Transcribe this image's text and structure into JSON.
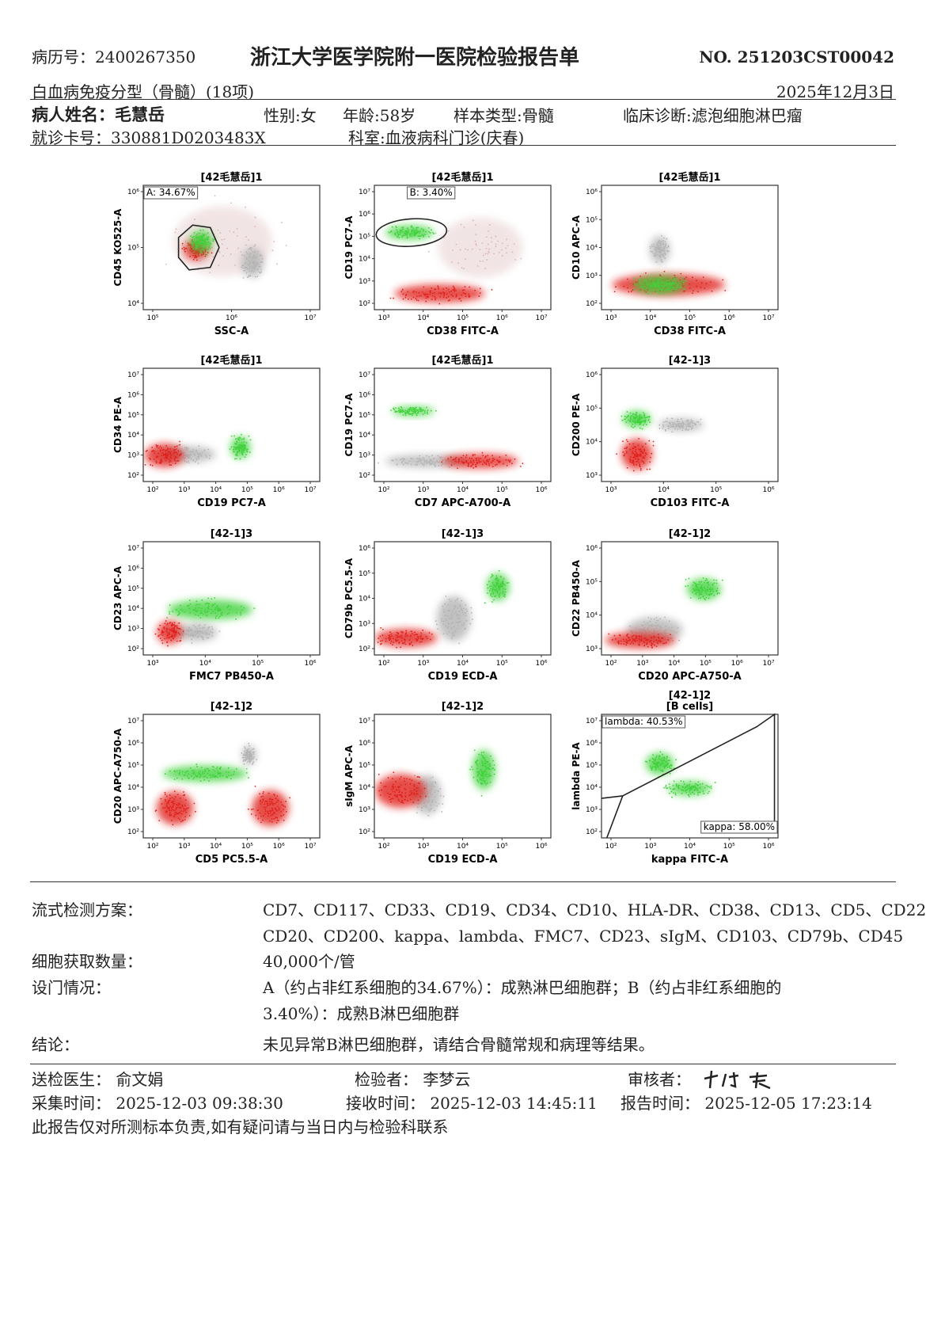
{
  "header": {
    "record_no": "病历号：2400267350",
    "title": "浙江大学医学院附一医院检验报告单",
    "report_no": "NO. 251203CST00042",
    "test_name": "白血病免疫分型（骨髓）(18项)",
    "date": "2025年12月3日",
    "patient_name": "病人姓名：毛慧岳",
    "sex": "性别:女",
    "age": "年龄:58岁",
    "sample": "样本类型:骨髓",
    "diagnosis": "临床诊断:滤泡细胞淋巴瘤",
    "card_no": "就诊卡号：330881D0203483X",
    "department": "科室:血液病科门诊(庆春)"
  },
  "plots": [
    {
      "title": "[42毛慧岳]1",
      "xlabel": "SSC-A",
      "ylabel": "CD45 KO525-A",
      "xticks": [
        "10⁵",
        "10⁶",
        "10⁷"
      ],
      "yticks": [
        "10⁴",
        "10⁵",
        "10⁶"
      ],
      "gates": [
        "A: 34.67%"
      ]
    },
    {
      "title": "[42毛慧岳]1",
      "xlabel": "CD38 FITC-A",
      "ylabel": "CD19 PC7-A",
      "xticks": [
        "10³",
        "10⁴",
        "10⁵",
        "10⁶",
        "10⁷"
      ],
      "yticks": [
        "10²",
        "10³",
        "10⁴",
        "10⁵",
        "10⁶",
        "10⁷"
      ],
      "gates": [
        "B: 3.40%"
      ]
    },
    {
      "title": "[42毛慧岳]1",
      "xlabel": "CD38 FITC-A",
      "ylabel": "CD10 APC-A",
      "xticks": [
        "10³",
        "10⁴",
        "10⁵",
        "10⁶",
        "10⁷"
      ],
      "yticks": [
        "10²",
        "10³",
        "10⁴",
        "10⁵",
        "10⁶"
      ]
    },
    {
      "title": "[42毛慧岳]1",
      "xlabel": "CD19 PC7-A",
      "ylabel": "CD34 PE-A",
      "xticks": [
        "10²",
        "10³",
        "10⁴",
        "10⁵",
        "10⁶",
        "10⁷"
      ],
      "yticks": [
        "10²",
        "10³",
        "10⁴",
        "10⁵",
        "10⁶",
        "10⁷"
      ]
    },
    {
      "title": "[42毛慧岳]1",
      "xlabel": "CD7 APC-A700-A",
      "ylabel": "CD19 PC7-A",
      "xticks": [
        "10²",
        "10³",
        "10⁴",
        "10⁵",
        "10⁶"
      ],
      "yticks": [
        "10²",
        "10³",
        "10⁴",
        "10⁵",
        "10⁶",
        "10⁷"
      ]
    },
    {
      "title": "[42-1]3",
      "xlabel": "CD103 FITC-A",
      "ylabel": "CD200 PE-A",
      "xticks": [
        "10³",
        "10⁴",
        "10⁵",
        "10⁶"
      ],
      "yticks": [
        "10³",
        "10⁴",
        "10⁵",
        "10⁶"
      ]
    },
    {
      "title": "[42-1]3",
      "xlabel": "FMC7 PB450-A",
      "ylabel": "CD23 APC-A",
      "xticks": [
        "10³",
        "10⁴",
        "10⁵",
        "10⁶"
      ],
      "yticks": [
        "10²",
        "10³",
        "10⁴",
        "10⁵",
        "10⁶",
        "10⁷"
      ]
    },
    {
      "title": "[42-1]3",
      "xlabel": "CD19 ECD-A",
      "ylabel": "CD79b PC5.5-A",
      "xticks": [
        "10²",
        "10³",
        "10⁴",
        "10⁵",
        "10⁶"
      ],
      "yticks": [
        "10²",
        "10³",
        "10⁴",
        "10⁵",
        "10⁶"
      ]
    },
    {
      "title": "[42-1]2",
      "xlabel": "CD20 APC-A750-A",
      "ylabel": "CD22 PB450-A",
      "xticks": [
        "10²",
        "10³",
        "10⁴",
        "10⁵",
        "10⁶",
        "10⁷"
      ],
      "yticks": [
        "10³",
        "10⁴",
        "10⁵",
        "10⁶"
      ]
    },
    {
      "title": "[42-1]2",
      "xlabel": "CD5 PC5.5-A",
      "ylabel": "CD20 APC-A750-A",
      "xticks": [
        "10²",
        "10³",
        "10⁴",
        "10⁵",
        "10⁶",
        "10⁷"
      ],
      "yticks": [
        "10²",
        "10³",
        "10⁴",
        "10⁵",
        "10⁶",
        "10⁷"
      ]
    },
    {
      "title": "[42-1]2",
      "xlabel": "CD19 ECD-A",
      "ylabel": "sIgM APC-A",
      "xticks": [
        "10²",
        "10³",
        "10⁴",
        "10⁵",
        "10⁶"
      ],
      "yticks": [
        "10²",
        "10³",
        "10⁴",
        "10⁵",
        "10⁶",
        "10⁷"
      ]
    },
    {
      "title": "[42-1]2",
      "subtitle": "[B cells]",
      "xlabel": "kappa FITC-A",
      "ylabel": "lambda PE-A",
      "xticks": [
        "10²",
        "10³",
        "10⁴",
        "10⁵",
        "10⁶"
      ],
      "yticks": [
        "10²",
        "10³",
        "10⁴",
        "10⁵",
        "10⁶",
        "10⁷"
      ],
      "gates": [
        "lambda: 40.53%",
        "kappa: 58.00%"
      ]
    }
  ],
  "details": [
    {
      "label": "流式检测方案：",
      "lines": [
        "CD7、CD117、CD33、CD19、CD34、CD10、HLA-DR、CD38、CD13、CD5、CD22、",
        "CD20、CD200、kappa、lambda、FMC7、CD23、sIgM、CD103、CD79b、CD45"
      ]
    },
    {
      "label": "细胞获取数量：",
      "lines": [
        "40,000个/管"
      ]
    },
    {
      "label": "设门情况：",
      "lines": [
        "A（约占非红系细胞的34.67%）：成熟淋巴细胞群；B（约占非红系细胞的",
        "3.40%）：成熟B淋巴细胞群"
      ]
    },
    {
      "label": "结论：",
      "lines": [
        "未见异常B淋巴细胞群，请结合骨髓常规和病理等结果。"
      ]
    }
  ],
  "footer": {
    "doctor": "送检医生：  俞文娟",
    "tester": "检验者：  李梦云",
    "reviewer": "审核者：",
    "collect_time": "采集时间：  2025-12-03 09:38:30",
    "receive_time": "接收时间：  2025-12-03 14:45:11",
    "report_time": "报告时间：  2025-12-05 17:23:14",
    "note": "此报告仅对所测标本负责,如有疑问请与当日内与检验科联系"
  }
}
